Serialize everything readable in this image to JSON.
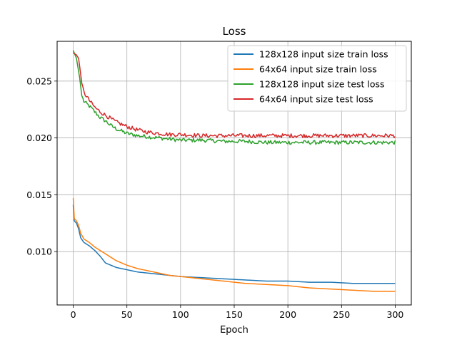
{
  "chart_data": {
    "type": "line",
    "title": "Loss",
    "xlabel": "Epoch",
    "ylabel": "",
    "xlim": [
      -15,
      315
    ],
    "ylim": [
      0.0053,
      0.0285
    ],
    "xticks": [
      0,
      50,
      100,
      150,
      200,
      250,
      300
    ],
    "xtick_labels": [
      "0",
      "50",
      "100",
      "150",
      "200",
      "250",
      "300"
    ],
    "yticks": [
      0.01,
      0.015,
      0.02,
      0.025
    ],
    "ytick_labels": [
      "0.010",
      "0.015",
      "0.020",
      "0.025"
    ],
    "grid": true,
    "legend_position": "top-right",
    "series": [
      {
        "name": "128x128 input size train loss",
        "color": "#1f77b4",
        "points": [
          [
            0,
            0.0141
          ],
          [
            1,
            0.0127
          ],
          [
            3,
            0.0125
          ],
          [
            5,
            0.012
          ],
          [
            7,
            0.0112
          ],
          [
            10,
            0.0108
          ],
          [
            15,
            0.0105
          ],
          [
            20,
            0.0101
          ],
          [
            25,
            0.0096
          ],
          [
            30,
            0.009
          ],
          [
            35,
            0.0088
          ],
          [
            40,
            0.0086
          ],
          [
            50,
            0.0084
          ],
          [
            60,
            0.0082
          ],
          [
            70,
            0.0081
          ],
          [
            80,
            0.008
          ],
          [
            90,
            0.0079
          ],
          [
            100,
            0.0078
          ],
          [
            120,
            0.0077
          ],
          [
            140,
            0.0076
          ],
          [
            160,
            0.0075
          ],
          [
            180,
            0.0074
          ],
          [
            200,
            0.0074
          ],
          [
            220,
            0.0073
          ],
          [
            240,
            0.0073
          ],
          [
            260,
            0.0072
          ],
          [
            280,
            0.0072
          ],
          [
            300,
            0.0072
          ]
        ]
      },
      {
        "name": "64x64 input size train loss",
        "color": "#ff7f0e",
        "points": [
          [
            0,
            0.0147
          ],
          [
            1,
            0.0129
          ],
          [
            3,
            0.0127
          ],
          [
            5,
            0.0123
          ],
          [
            7,
            0.0116
          ],
          [
            10,
            0.0111
          ],
          [
            15,
            0.0108
          ],
          [
            20,
            0.0104
          ],
          [
            25,
            0.0101
          ],
          [
            30,
            0.0098
          ],
          [
            35,
            0.0095
          ],
          [
            40,
            0.0092
          ],
          [
            50,
            0.0088
          ],
          [
            60,
            0.0085
          ],
          [
            70,
            0.0083
          ],
          [
            80,
            0.0081
          ],
          [
            90,
            0.0079
          ],
          [
            100,
            0.0078
          ],
          [
            120,
            0.0076
          ],
          [
            140,
            0.0074
          ],
          [
            160,
            0.0072
          ],
          [
            180,
            0.0071
          ],
          [
            200,
            0.007
          ],
          [
            220,
            0.0068
          ],
          [
            240,
            0.0067
          ],
          [
            260,
            0.0066
          ],
          [
            280,
            0.0065
          ],
          [
            300,
            0.0065
          ]
        ]
      },
      {
        "name": "128x128 input size test loss",
        "color": "#2ca02c",
        "points": [
          [
            0,
            0.0277
          ],
          [
            3,
            0.027
          ],
          [
            6,
            0.0253
          ],
          [
            8,
            0.0237
          ],
          [
            10,
            0.0232
          ],
          [
            15,
            0.0228
          ],
          [
            20,
            0.0223
          ],
          [
            25,
            0.0218
          ],
          [
            30,
            0.0215
          ],
          [
            35,
            0.0211
          ],
          [
            40,
            0.0208
          ],
          [
            50,
            0.0204
          ],
          [
            60,
            0.0202
          ],
          [
            70,
            0.0201
          ],
          [
            80,
            0.02
          ],
          [
            90,
            0.0199
          ],
          [
            100,
            0.0198
          ],
          [
            120,
            0.0198
          ],
          [
            140,
            0.0197
          ],
          [
            160,
            0.0197
          ],
          [
            180,
            0.0196
          ],
          [
            200,
            0.0196
          ],
          [
            220,
            0.0196
          ],
          [
            240,
            0.0196
          ],
          [
            260,
            0.0196
          ],
          [
            280,
            0.0196
          ],
          [
            300,
            0.0196
          ]
        ],
        "noise": 0.00035
      },
      {
        "name": "64x64 input size test loss",
        "color": "#d62728",
        "points": [
          [
            0,
            0.0275
          ],
          [
            3,
            0.0273
          ],
          [
            5,
            0.027
          ],
          [
            6,
            0.0263
          ],
          [
            8,
            0.0248
          ],
          [
            10,
            0.024
          ],
          [
            15,
            0.0233
          ],
          [
            20,
            0.0227
          ],
          [
            25,
            0.0223
          ],
          [
            30,
            0.022
          ],
          [
            35,
            0.0217
          ],
          [
            40,
            0.0214
          ],
          [
            50,
            0.021
          ],
          [
            60,
            0.0207
          ],
          [
            70,
            0.0205
          ],
          [
            80,
            0.0204
          ],
          [
            90,
            0.0203
          ],
          [
            100,
            0.0203
          ],
          [
            120,
            0.0202
          ],
          [
            140,
            0.0202
          ],
          [
            160,
            0.0202
          ],
          [
            180,
            0.0202
          ],
          [
            200,
            0.0202
          ],
          [
            220,
            0.0202
          ],
          [
            240,
            0.0202
          ],
          [
            260,
            0.0202
          ],
          [
            280,
            0.0202
          ],
          [
            300,
            0.0202
          ]
        ],
        "noise": 0.00035
      }
    ]
  }
}
